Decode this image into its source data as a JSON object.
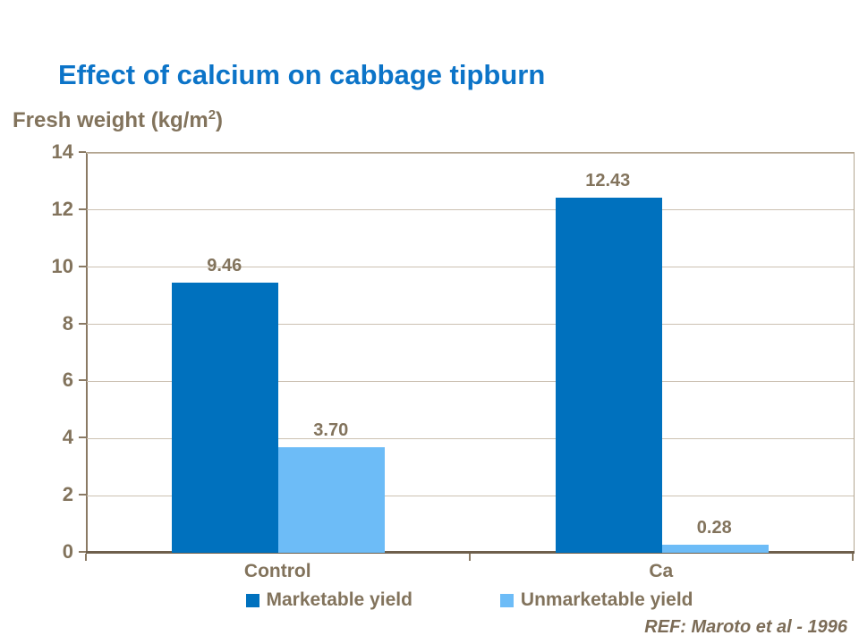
{
  "slide": {
    "title": "Effect of calcium on cabbage tipburn",
    "ref": "REF: Maroto et al - 1996"
  },
  "axis_title": {
    "pre": "Fresh weight (kg/m",
    "sup": "2",
    "post": ")"
  },
  "colors": {
    "title_blue": "#0C74C8",
    "label_taupe": "#82735C",
    "gridline": "#CCC1B2",
    "axis": "#8A7A64"
  },
  "chart_data": {
    "type": "bar",
    "title": "Effect of calcium on cabbage tipburn",
    "ylabel": "Fresh weight (kg/m2)",
    "xlabel": "",
    "categories": [
      "Control",
      "Ca"
    ],
    "series": [
      {
        "name": "Marketable yield",
        "color": "#0071BE",
        "values": [
          9.46,
          12.43
        ],
        "labels": [
          "9.46",
          "12.43"
        ]
      },
      {
        "name": "Unmarketable yield",
        "color": "#6DBCF7",
        "values": [
          3.7,
          0.28
        ],
        "labels": [
          "3.70",
          "0.28"
        ]
      }
    ],
    "ylim": [
      0,
      14
    ],
    "ytick_step": 2,
    "yticks": [
      "0",
      "2",
      "4",
      "6",
      "8",
      "10",
      "12",
      "14"
    ],
    "grid": true,
    "legend_position": "bottom"
  }
}
